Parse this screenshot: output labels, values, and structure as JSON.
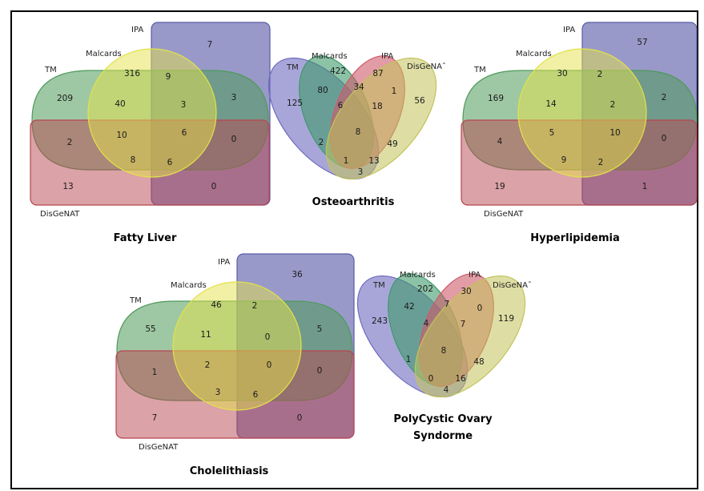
{
  "colors": {
    "ipa": "#5b5ba8",
    "tm": "#4f9a5a",
    "disgenat": "#b8454f",
    "malcards": "#e3e24a",
    "ellipse_tm": "#6e6ac0",
    "ellipse_malcards": "#3f9a6a",
    "ellipse_ipa": "#cf5a6a",
    "ellipse_disgenat": "#c2c25a"
  },
  "diagrams": {
    "fatty_liver": {
      "title": "Fatty Liver",
      "labels": {
        "ipa": "IPA",
        "malcards": "Malcards",
        "tm": "TM",
        "disgenat": "DisGeNAT"
      },
      "values": [
        "7",
        "316",
        "9",
        "209",
        "40",
        "3",
        "3",
        "2",
        "10",
        "6",
        "0",
        "8",
        "6",
        "13",
        "0"
      ]
    },
    "hyperlipidemia": {
      "title": "Hyperlipidemia",
      "labels": {
        "ipa": "IPA",
        "malcards": "Malcards",
        "tm": "TM",
        "disgenat": "DisGeNAT"
      },
      "values": [
        "57",
        "30",
        "2",
        "169",
        "14",
        "2",
        "2",
        "4",
        "5",
        "10",
        "0",
        "9",
        "2",
        "19",
        "1"
      ]
    },
    "cholelithiasis": {
      "title": "Cholelithiasis",
      "labels": {
        "ipa": "IPA",
        "malcards": "Malcards",
        "tm": "TM",
        "disgenat": "DisGeNAT"
      },
      "values": [
        "36",
        "46",
        "2",
        "55",
        "11",
        "0",
        "5",
        "1",
        "2",
        "0",
        "0",
        "3",
        "6",
        "7",
        "0"
      ]
    },
    "osteoarthritis": {
      "title": "Osteoarthritis",
      "labels": {
        "tm": "TM",
        "malcards": "Malcards",
        "ipa": "IPA",
        "disgenat": "DisGeNAˆ"
      },
      "values": [
        "125",
        "422",
        "87",
        "56",
        "80",
        "34",
        "1",
        "6",
        "18",
        "2",
        "8",
        "49",
        "1",
        "13",
        "3"
      ]
    },
    "pcos": {
      "title_line1": "PolyCystic Ovary",
      "title_line2": "Syndorme",
      "labels": {
        "tm": "TM",
        "malcards": "Malcards",
        "ipa": "IPA",
        "disgenat": "DisGeNAˆ"
      },
      "values": [
        "243",
        "202",
        "30",
        "119",
        "42",
        "7",
        "0",
        "4",
        "7",
        "1",
        "8",
        "48",
        "0",
        "16",
        "4"
      ]
    }
  }
}
